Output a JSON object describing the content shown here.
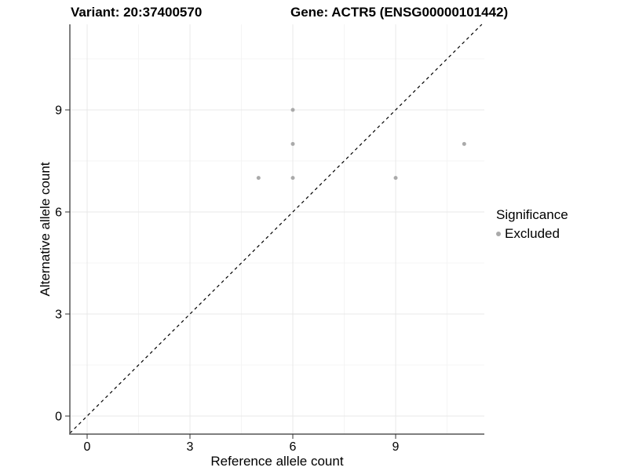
{
  "chart_data": {
    "type": "scatter",
    "titles": {
      "variant": "Variant: 20:37400570",
      "gene": "Gene: ACTR5 (ENSG00000101442)"
    },
    "xlabel": "Reference allele count",
    "ylabel": "Alternative allele count",
    "x_ticks": [
      0,
      3,
      6,
      9
    ],
    "y_ticks": [
      0,
      3,
      6,
      9
    ],
    "x_minor_ticks": [
      1.5,
      4.5,
      7.5,
      10.5
    ],
    "y_minor_ticks": [
      1.5,
      4.5,
      7.5,
      10.5
    ],
    "xlim": [
      -0.5,
      11.6
    ],
    "ylim": [
      -0.53,
      11.52
    ],
    "grid": "major+minor",
    "identity_line": {
      "slope": 1,
      "intercept": 0,
      "style": "dashed",
      "color": "#000000"
    },
    "series": [
      {
        "name": "Excluded",
        "color": "#aaaaaa",
        "points": [
          [
            5,
            7
          ],
          [
            6,
            7
          ],
          [
            6,
            8
          ],
          [
            6,
            9
          ],
          [
            9,
            7
          ],
          [
            11,
            8
          ]
        ]
      }
    ],
    "legend": {
      "title": "Significance",
      "position": "right",
      "items": [
        {
          "label": "Excluded",
          "color": "#aaaaaa"
        }
      ]
    },
    "colors": {
      "grid_major": "#e9e9e9",
      "grid_minor": "#f4f4f4",
      "axis": "#555555",
      "tick": "#333333",
      "text": "#000000"
    }
  }
}
